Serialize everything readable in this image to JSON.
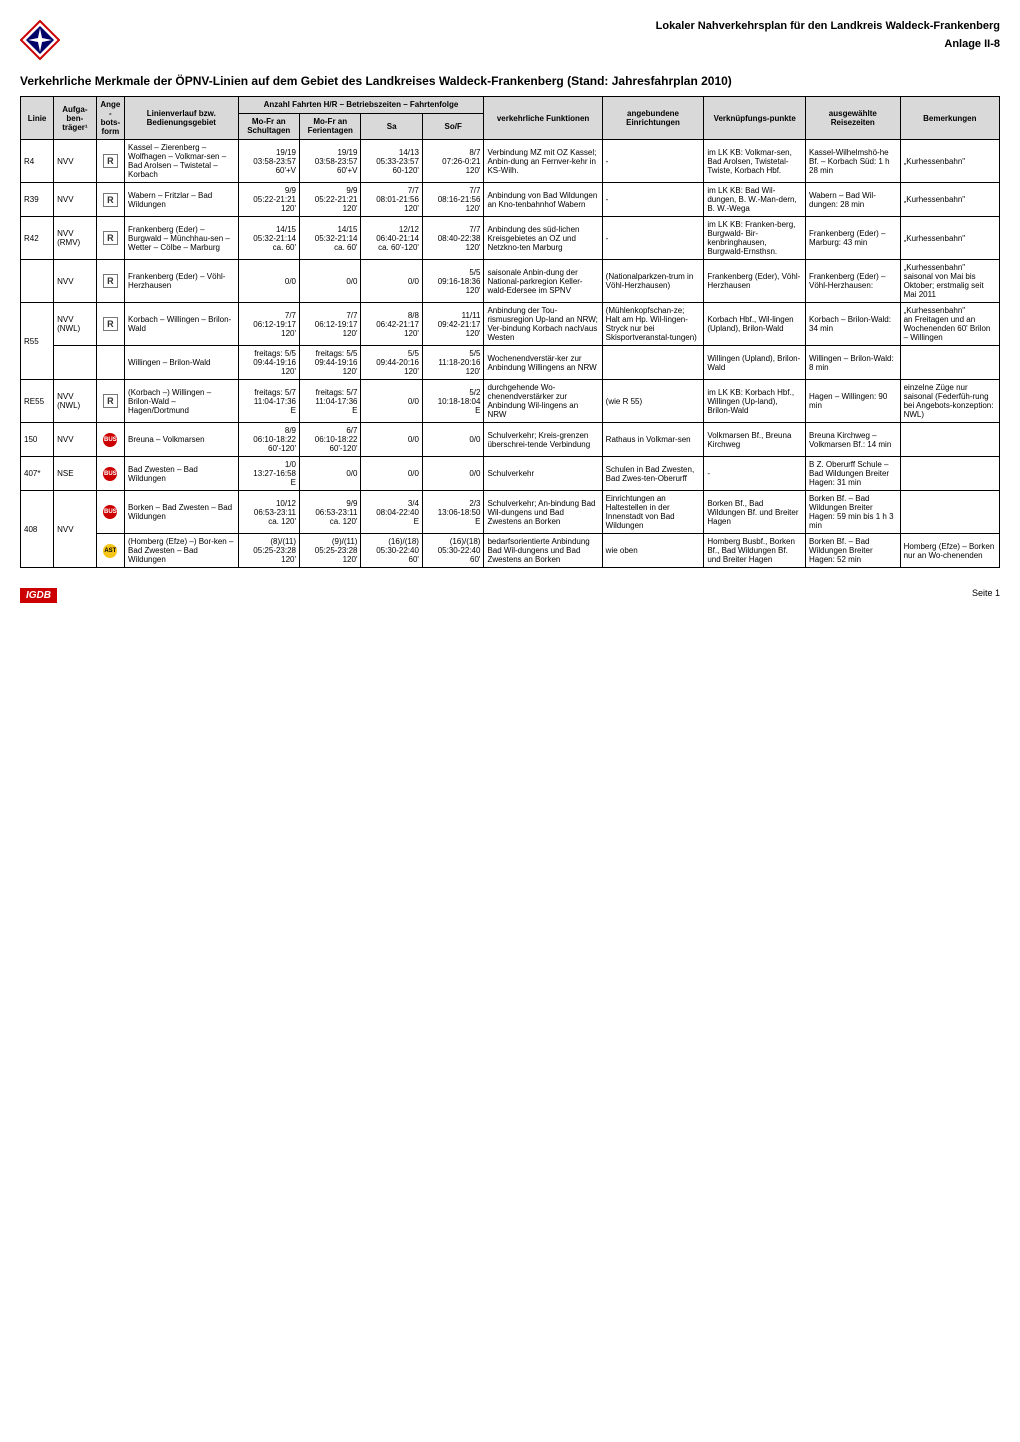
{
  "header": {
    "title_line1": "Lokaler Nahverkehrsplan für den Landkreis Waldeck-Frankenberg",
    "anlage": "Anlage II-8"
  },
  "main_heading": "Verkehrliche Merkmale der ÖPNV-Linien auf dem Gebiet des Landkreises Waldeck-Frankenberg (Stand: Jahresfahrplan 2010)",
  "columns": {
    "linie": "Linie",
    "aufga_ben_traeger": "Aufga-ben-träger¹",
    "ange_bots_form": "Ange-bots-form",
    "linienverlauf": "Linienverlauf bzw. Bedienungsgebiet",
    "anzahl_group": "Anzahl Fahrten H/R – Betriebszeiten – Fahrtenfolge",
    "mofr_schul": "Mo-Fr an Schultagen",
    "mofr_ferien": "Mo-Fr an Ferientagen",
    "sa": "Sa",
    "sof": "So/F",
    "funktionen": "verkehrliche Funktionen",
    "einrichtungen": "angebundene Einrichtungen",
    "verknuepf": "Verknüpfungs-punkte",
    "reise": "ausgewählte Reisezeiten",
    "bemerkungen": "Bemerkungen"
  },
  "rows": [
    {
      "linie": "R4",
      "traeger": "NVV",
      "form": "R",
      "gebiet": "Kassel – Zierenberg – Wolfhagen – Volkmar-sen – Bad Arolsen – Twistetal – Korbach",
      "schul": "19/19\n03:58-23:57\n60'+V",
      "ferien": "19/19\n03:58-23:57\n60'+V",
      "sa": "14/13\n05:33-23:57\n60-120'",
      "sof": "8/7\n07:26-0:21\n120'",
      "funkt": "Verbindung MZ mit OZ Kassel; Anbin-dung an Fernver-kehr in KS-Wilh.",
      "einr": "-",
      "verkn": "im LK KB: Volkmar-sen, Bad Arolsen, Twistetal-Twiste, Korbach Hbf.",
      "reise": "Kassel-Wilhelmshö-he Bf. – Korbach Süd: 1 h 28 min",
      "bem": "„Kurhessenbahn\""
    },
    {
      "linie": "R39",
      "traeger": "NVV",
      "form": "R",
      "gebiet": "Wabern – Fritzlar – Bad Wildungen",
      "schul": "9/9\n05:22-21:21\n120'",
      "ferien": "9/9\n05:22-21:21\n120'",
      "sa": "7/7\n08:01-21:56\n120'",
      "sof": "7/7\n08:16-21:56\n120'",
      "funkt": "Anbindung von Bad Wildungen an Kno-tenbahnhof Wabern",
      "einr": "-",
      "verkn": "im LK KB: Bad Wil-dungen, B. W.-Man-dern, B. W.-Wega",
      "reise": "Wabern – Bad Wil-dungen: 28 min",
      "bem": "„Kurhessenbahn\""
    },
    {
      "linie": "R42",
      "traeger": "NVV (RMV)",
      "form": "R",
      "group": "r42",
      "gebiet": "Frankenberg (Eder) – Burgwald – Münchhau-sen – Wetter – Cölbe – Marburg",
      "schul": "14/15\n05:32-21:14\nca. 60'",
      "ferien": "14/15\n05:32-21:14\nca. 60'",
      "sa": "12/12\n06:40-21:14\nca. 60'-120'",
      "sof": "7/7\n08:40-22:38\n120'",
      "funkt": "Anbindung des süd-lichen Kreisgebietes an OZ und Netzkno-ten Marburg",
      "einr": "-",
      "verkn": "im LK KB: Franken-berg, Burgwald- Bir-kenbringhausen, Burgwald-Ernsthsn.",
      "reise": "Frankenberg (Eder) – Marburg: 43 min",
      "bem": "„Kurhessenbahn\""
    },
    {
      "linie": "",
      "traeger": "NVV",
      "form": "R",
      "group": "r42",
      "gebiet": "Frankenberg (Eder) – Vöhl-Herzhausen",
      "schul": "0/0",
      "ferien": "0/0",
      "sa": "0/0",
      "sof": "5/5\n09:16-18:36\n120'",
      "funkt": "saisonale Anbin-dung der National-parkregion Keller-wald-Edersee im SPNV",
      "einr": "(Nationalparkzen-trum in Vöhl-Herzhausen)",
      "verkn": "Frankenberg (Eder), Vöhl-Herzhausen",
      "reise": "Frankenberg (Eder) – Vöhl-Herzhausen:",
      "bem": "„Kurhessenbahn\"\nsaisonal von Mai bis Oktober; erstmalig seit Mai 2011"
    },
    {
      "linie": "R55",
      "traeger": "NVV (NWL)",
      "form": "R",
      "group": "r55",
      "rowspan_linie": 2,
      "gebiet": "Korbach – Willingen – Brilon-Wald",
      "schul": "7/7\n06:12-19:17\n120'",
      "ferien": "7/7\n06:12-19:17\n120'",
      "sa": "8/8\n06:42-21:17\n120'",
      "sof": "11/11\n09:42-21:17\n120'",
      "funkt": "Anbindung der Tou-rismusregion Up-land an NRW; Ver-bindung Korbach nach/aus Westen",
      "einr": "(Mühlenkopfschan-ze; Halt am Hp. Wil-lingen-Stryck nur bei Skisportveranstal-tungen)",
      "verkn": "Korbach Hbf., Wil-lingen (Upland), Brilon-Wald",
      "reise": "Korbach – Brilon-Wald: 34 min",
      "bem": "„Kurhessenbahn\"\nan Freitagen und an Wochenenden 60' Brilon – Willingen"
    },
    {
      "linie": "",
      "traeger": "",
      "form": "",
      "group": "r55",
      "gebiet": "Willingen – Brilon-Wald",
      "schul": "freitags: 5/5\n09:44-19:16\n120'",
      "ferien": "freitags: 5/5\n09:44-19:16\n120'",
      "sa": "5/5\n09:44-20:16\n120'",
      "sof": "5/5\n11:18-20:16\n120'",
      "funkt": "Wochenendverstär-ker zur Anbindung Willingens an NRW",
      "einr": "",
      "verkn": "Willingen (Upland), Brilon-Wald",
      "reise": "Willingen – Brilon-Wald: 8 min",
      "bem": ""
    },
    {
      "linie": "RE55",
      "traeger": "NVV (NWL)",
      "form": "R",
      "gebiet": "(Korbach –) Willingen – Brilon-Wald – Hagen/Dortmund",
      "schul": "freitags: 5/7\n11:04-17:36\nE",
      "ferien": "freitags: 5/7\n11:04-17:36\nE",
      "sa": "0/0",
      "sof": "5/2\n10:18-18:04\nE",
      "funkt": "durchgehende Wo-chenendverstärker zur Anbindung Wil-lingens an NRW",
      "einr": "(wie R 55)",
      "verkn": "im LK KB: Korbach Hbf., Willingen (Up-land), Brilon-Wald",
      "reise": "Hagen – Willingen: 90 min",
      "bem": "einzelne Züge nur saisonal (Federfüh-rung bei Angebots-konzeption: NWL)"
    },
    {
      "linie": "150",
      "traeger": "NVV",
      "form": "BUS",
      "gebiet": "Breuna – Volkmarsen",
      "schul": "8/9\n06:10-18:22\n60'-120'",
      "ferien": "6/7\n06:10-18:22\n60'-120'",
      "sa": "0/0",
      "sof": "0/0",
      "funkt": "Schulverkehr; Kreis-grenzen überschrei-tende Verbindung",
      "einr": "Rathaus in Volkmar-sen",
      "verkn": "Volkmarsen Bf., Breuna Kirchweg",
      "reise": "Breuna Kirchweg – Volkmarsen Bf.: 14 min",
      "bem": ""
    },
    {
      "linie": "407*",
      "traeger": "NSE",
      "form": "BUS",
      "gebiet": "Bad Zwesten – Bad Wildungen",
      "schul": "1/0\n13:27-16:58\nE",
      "ferien": "0/0",
      "sa": "0/0",
      "sof": "0/0",
      "funkt": "Schulverkehr",
      "einr": "Schulen in Bad Zwesten, Bad Zwes-ten-Oberurff",
      "verkn": "-",
      "reise": "B Z. Oberurff Schule – Bad Wildungen Breiter Hagen: 31 min",
      "bem": ""
    },
    {
      "linie": "408",
      "traeger": "NVV",
      "form": "BUS",
      "group": "408",
      "rowspan_linie": 2,
      "rowspan_traeger": 2,
      "gebiet": "Borken – Bad Zwesten – Bad Wildungen",
      "schul": "10/12\n06:53-23:11\nca. 120'",
      "ferien": "9/9\n06:53-23:11\nca. 120'",
      "sa": "3/4\n08:04-22:40\nE",
      "sof": "2/3\n13:06-18:50\nE",
      "funkt": "Schulverkehr; An-bindung Bad Wil-dungens und Bad Zwestens an Borken",
      "einr": "Einrichtungen an Haltestellen in der Innenstadt von Bad Wildungen",
      "verkn": "Borken Bf., Bad Wildungen Bf. und Breiter Hagen",
      "reise": "Borken Bf. – Bad Wildungen Breiter Hagen: 59 min bis 1 h 3 min",
      "bem": ""
    },
    {
      "linie": "",
      "traeger": "",
      "form": "AST",
      "group": "408",
      "gebiet": "(Homberg (Efze) –) Bor-ken – Bad Zwesten – Bad Wildungen",
      "schul": "(8)/(11)\n05:25-23:28\n120'",
      "ferien": "(9)/(11)\n05:25-23:28\n120'",
      "sa": "(16)/(18)\n05:30-22:40\n60'",
      "sof": "(16)/(18)\n05:30-22:40\n60'",
      "funkt": "bedarfsorientierte Anbindung Bad Wil-dungens und Bad Zwestens an Borken",
      "einr": "wie oben",
      "verkn": "Homberg Busbf., Borken Bf., Bad Wildungen Bf. und Breiter Hagen",
      "reise": "Borken Bf. – Bad Wildungen Breiter Hagen: 52 min",
      "bem": "Homberg (Efze) – Borken nur an Wo-chenenden"
    }
  ],
  "footer": {
    "logo": "IGDB",
    "page": "Seite 1"
  }
}
